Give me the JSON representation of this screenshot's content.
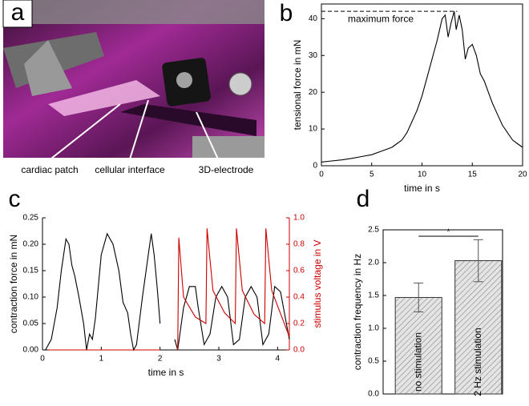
{
  "chart_data": [
    {
      "type": "image",
      "panel_label": "a",
      "annotations": [
        "cardiac patch",
        "cellular interface",
        "3D-electrode"
      ]
    },
    {
      "type": "line",
      "panel_label": "b",
      "x_label": "time in s",
      "y_label": "tensional force in mN",
      "x": [
        0,
        1,
        2,
        3,
        4,
        5,
        6,
        7,
        7.5,
        8,
        8.5,
        9,
        9.5,
        10,
        10.5,
        11,
        11.5,
        12,
        12.3,
        12.6,
        12.9,
        13.2,
        13.4,
        13.7,
        14,
        14.3,
        14.6,
        15,
        15.4,
        15.8,
        16.2,
        16.6,
        17,
        17.5,
        18,
        18.5,
        19,
        19.5,
        20
      ],
      "values": [
        1,
        1.3,
        1.6,
        2,
        2.5,
        3,
        4,
        5,
        6,
        7,
        9,
        12,
        15,
        19,
        24,
        29,
        34,
        40,
        41,
        35,
        39,
        42,
        37,
        41,
        37,
        29,
        32,
        33,
        30,
        25,
        23,
        20,
        17,
        14,
        11,
        9,
        7,
        6,
        5
      ],
      "color": "#000000",
      "xlim": [
        0,
        20
      ],
      "ylim": [
        0,
        44
      ],
      "xticks": [
        0,
        5,
        10,
        15,
        20
      ],
      "yticks": [
        0,
        10,
        20,
        30,
        40
      ],
      "reference_line": {
        "value": 42,
        "label": "maximum force"
      }
    },
    {
      "type": "line",
      "panel_label": "c",
      "x_label": "time in s",
      "y_label": "contraction force in mN",
      "y2_label": "stimulus voltage in V",
      "series": [
        {
          "color": "#000000",
          "x": [
            0.05,
            0.15,
            0.25,
            0.32,
            0.4,
            0.45,
            0.5,
            0.55,
            0.62,
            0.7,
            0.75,
            0.8,
            0.85,
            0.9,
            1.0,
            1.1,
            1.2,
            1.3,
            1.37,
            1.45,
            1.5,
            1.55,
            1.6,
            1.7,
            1.8,
            1.85,
            1.9,
            1.95,
            2.0,
            null,
            2.25,
            2.3,
            2.4,
            2.5,
            2.6,
            2.65,
            2.75,
            2.85,
            2.95,
            3.05,
            3.15,
            3.25,
            3.35,
            3.45,
            3.55,
            3.65,
            3.75,
            3.85,
            3.95,
            4.05,
            4.15,
            4.2
          ],
          "values": [
            0,
            0.02,
            0.08,
            0.15,
            0.21,
            0.2,
            0.16,
            0.14,
            0.1,
            0.05,
            0.0,
            0.03,
            0.02,
            0.06,
            0.18,
            0.22,
            0.2,
            0.15,
            0.09,
            0.07,
            0.03,
            0.0,
            0.01,
            0.1,
            0.18,
            0.22,
            0.18,
            0.12,
            0.05,
            null,
            0.02,
            0,
            0.08,
            0.12,
            0.12,
            0.08,
            0.01,
            0.03,
            0.1,
            0.12,
            0.1,
            0.01,
            0.02,
            0.1,
            0.12,
            0.1,
            0.01,
            0.03,
            0.12,
            0.11,
            0.05,
            0.02
          ]
        },
        {
          "color": "#cc0000",
          "axis": "y2",
          "x": [
            0.1,
            2.0,
            null,
            2.3,
            2.32,
            2.4,
            2.6,
            2.78,
            2.8,
            2.9,
            3.1,
            3.28,
            3.3,
            3.4,
            3.6,
            3.78,
            3.8,
            3.9,
            4.2
          ],
          "values": [
            0.0,
            0.0,
            null,
            0.0,
            0.85,
            0.4,
            0.25,
            0.2,
            0.92,
            0.45,
            0.28,
            0.2,
            0.92,
            0.45,
            0.27,
            0.2,
            0.92,
            0.45,
            0.1
          ]
        }
      ],
      "xlim": [
        0,
        4.2
      ],
      "ylim": [
        0,
        0.25
      ],
      "y2lim": [
        0,
        1.0
      ],
      "xticks": [
        0,
        1,
        2,
        3,
        4
      ],
      "yticks": [
        {
          "value": 0,
          "label": "0.00"
        },
        0.05,
        {
          "value": 0.1,
          "label": "0.10"
        },
        0.15,
        {
          "value": 0.2,
          "label": "0.20"
        },
        0.25
      ],
      "y2ticks": [
        {
          "value": 0,
          "label": "0.0"
        },
        0.2,
        0.4,
        0.6,
        0.8,
        {
          "value": 1,
          "label": "1.0"
        }
      ],
      "y2_color": "#cc0000"
    },
    {
      "type": "bar",
      "panel_label": "d",
      "y_label": "contraction frequency in Hz",
      "categories": [
        "no stimulation",
        "2 Hz stimulation"
      ],
      "values": [
        1.47,
        2.03
      ],
      "errors": [
        0.22,
        0.32
      ],
      "significance": "*",
      "ylim": [
        0,
        2.5
      ],
      "yticks": [
        {
          "value": 0,
          "label": "0.0"
        },
        0.5,
        {
          "value": 1,
          "label": "1.0"
        },
        1.5,
        {
          "value": 2,
          "label": "2.0"
        },
        2.5
      ]
    }
  ]
}
